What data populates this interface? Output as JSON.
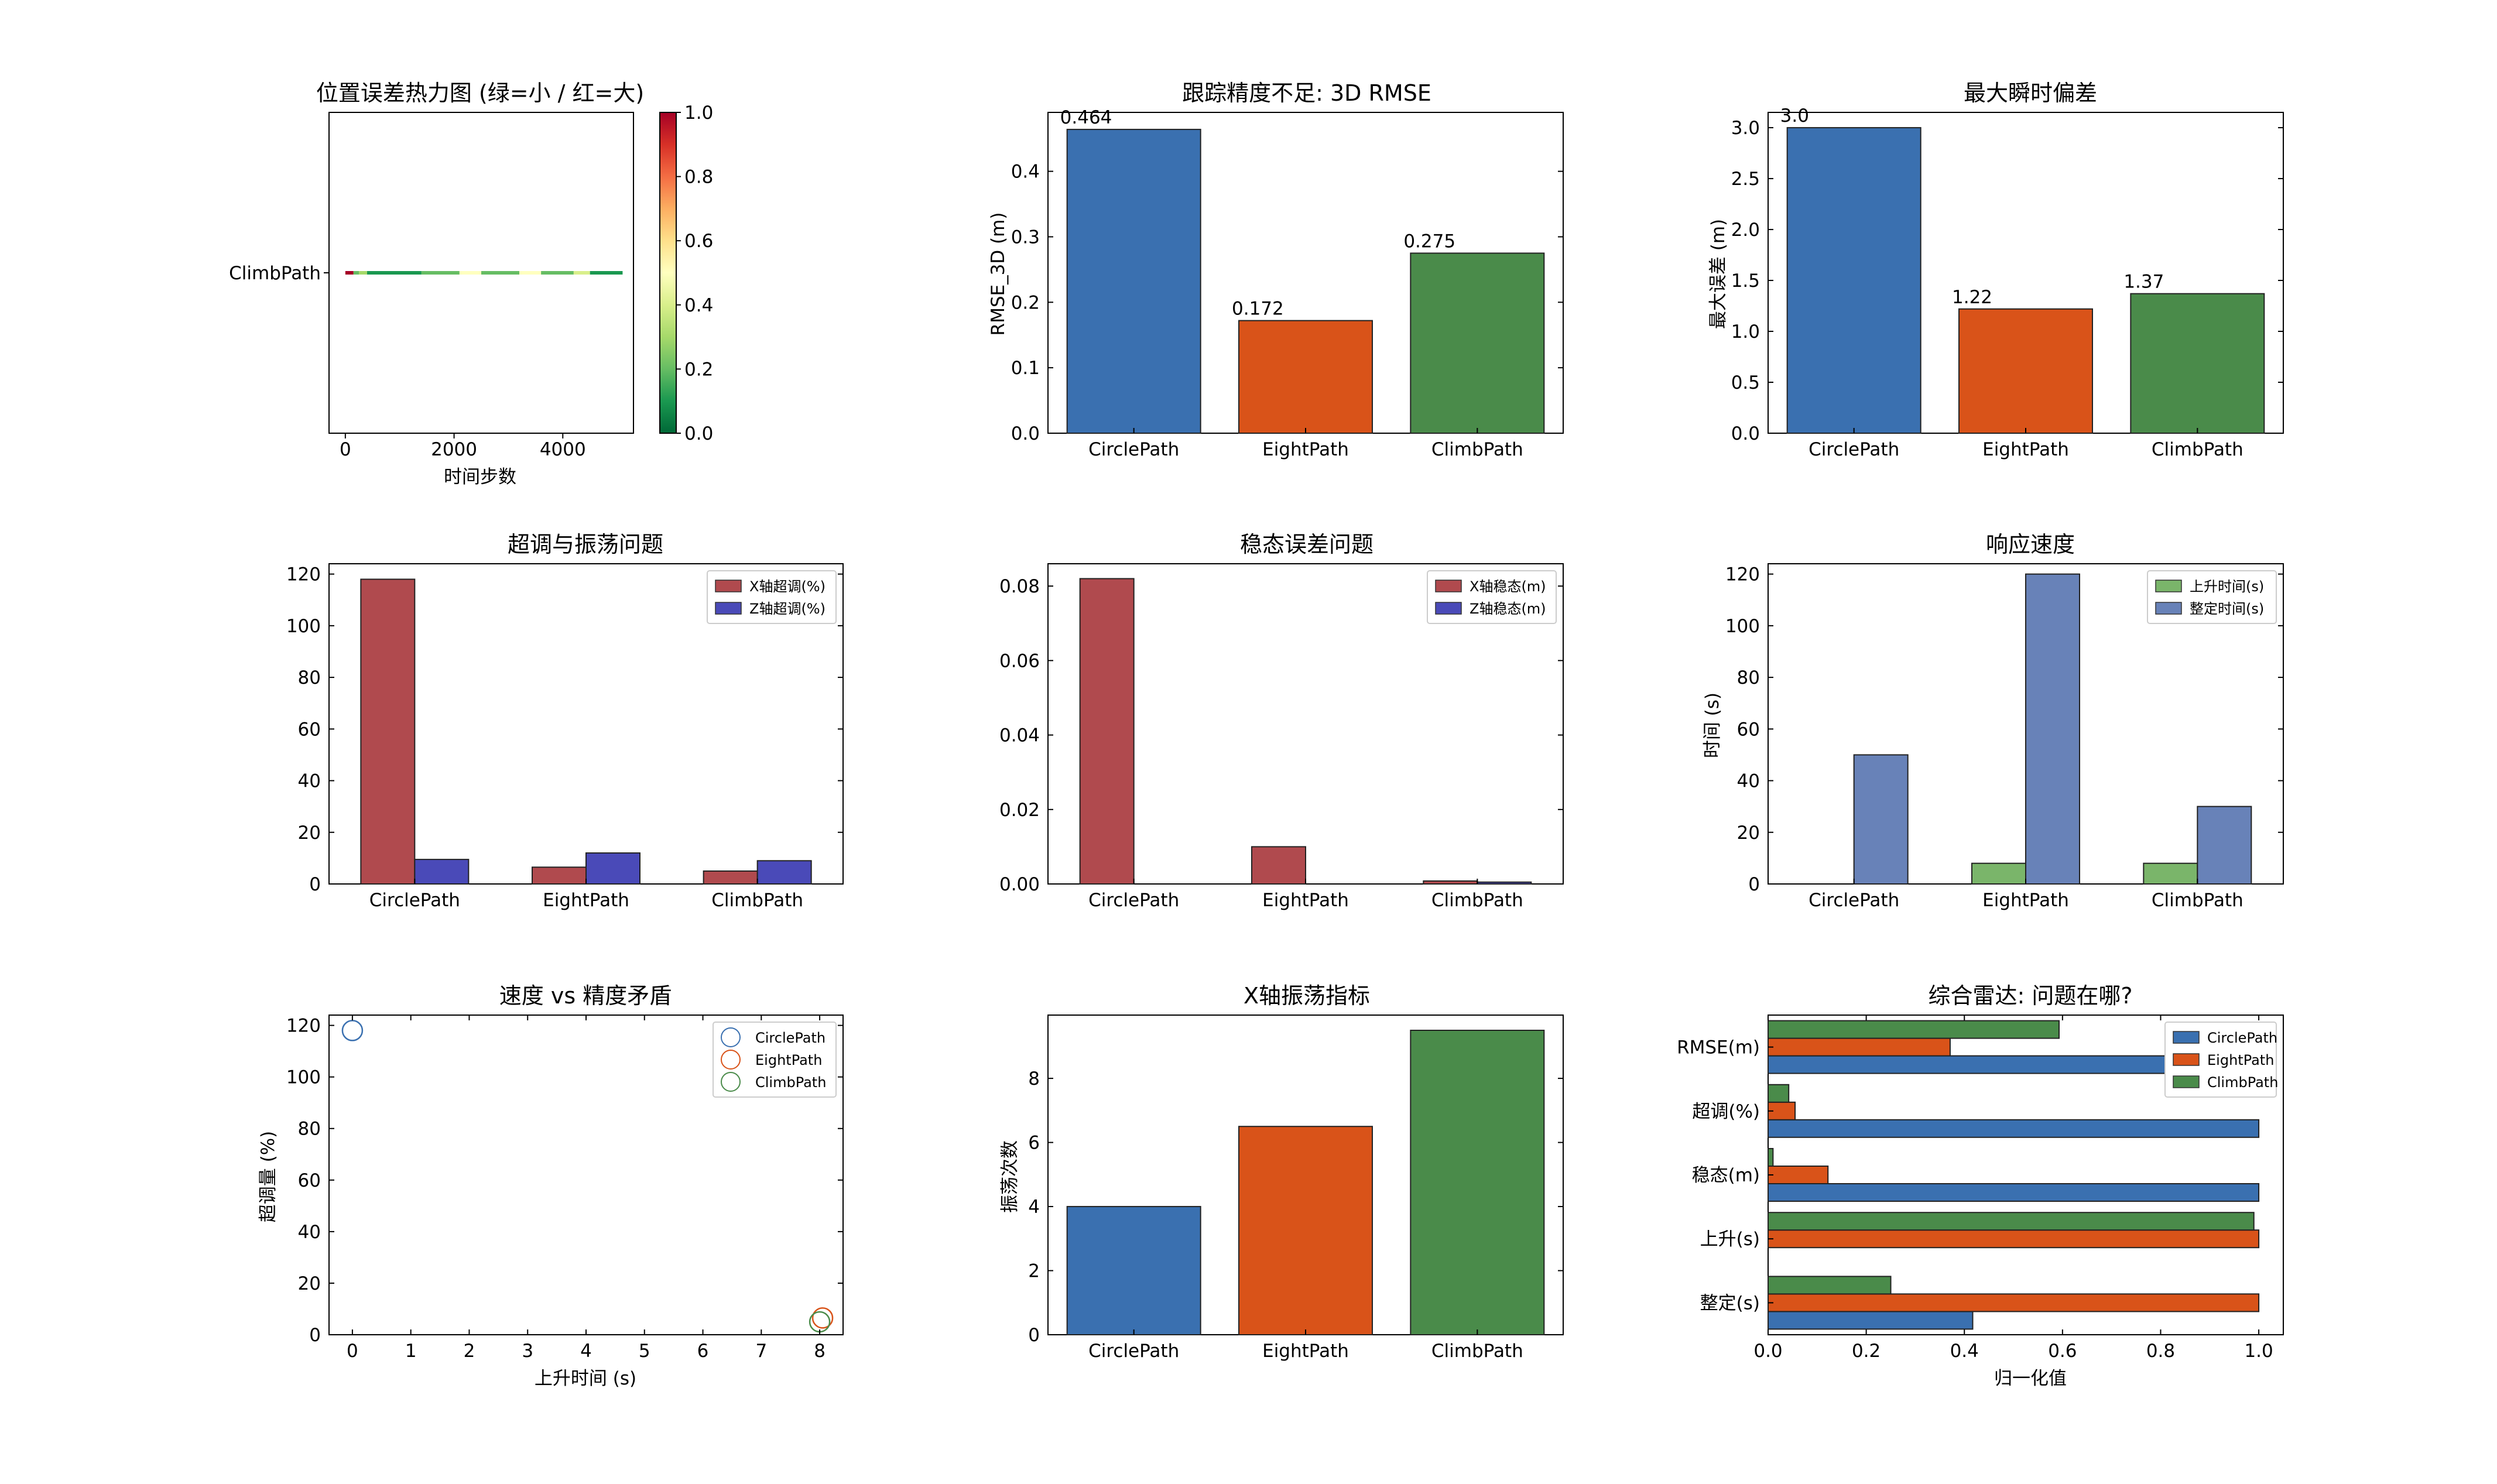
{
  "colors": {
    "blue": "#3a70b0",
    "orange": "#d95319",
    "green": "#4a8b4a",
    "red_bar": "#b04a4e",
    "indigo_bar": "#4a4ab8",
    "light_green_bar": "#7ab56a",
    "slate_blue_bar": "#6882b8"
  },
  "chart_data": [
    {
      "id": "heatmap",
      "type": "heatmap",
      "title": "位置误差热力图 (绿=小 / 红=大)",
      "xlabel": "时间步数",
      "ylabel": "",
      "row_labels": [
        "ClimbPath"
      ],
      "xticks": [
        "0",
        "2000",
        "4000"
      ],
      "xlim": [
        -300,
        5300
      ],
      "colorbar_ticks": [
        "0.0",
        "0.2",
        "0.4",
        "0.6",
        "0.8",
        "1.0"
      ],
      "colorbar_range": [
        0,
        1
      ],
      "row_profile": [
        {
          "x": 0,
          "v": 0.95
        },
        {
          "x": 150,
          "v": 0.15
        },
        {
          "x": 250,
          "v": 0.3
        },
        {
          "x": 400,
          "v": 0.1
        },
        {
          "x": 1400,
          "v": 0.2
        },
        {
          "x": 2100,
          "v": 0.5
        },
        {
          "x": 2500,
          "v": 0.15
        },
        {
          "x": 3200,
          "v": 0.45
        },
        {
          "x": 3600,
          "v": 0.2
        },
        {
          "x": 4200,
          "v": 0.4
        },
        {
          "x": 4500,
          "v": 0.1
        },
        {
          "x": 5100,
          "v": 0.3
        }
      ]
    },
    {
      "id": "rmse",
      "type": "bar",
      "title": "跟踪精度不足: 3D RMSE",
      "xlabel": "",
      "ylabel": "RMSE_3D (m)",
      "categories": [
        "CirclePath",
        "EightPath",
        "ClimbPath"
      ],
      "values": [
        0.464,
        0.172,
        0.275
      ],
      "data_labels": [
        "0.464",
        "0.172",
        "0.275"
      ],
      "ylim": [
        0,
        0.49
      ],
      "yticks": [
        "0.0",
        "0.1",
        "0.2",
        "0.3",
        "0.4"
      ]
    },
    {
      "id": "maxerr",
      "type": "bar",
      "title": "最大瞬时偏差",
      "xlabel": "",
      "ylabel": "最大误差 (m)",
      "categories": [
        "CirclePath",
        "EightPath",
        "ClimbPath"
      ],
      "values": [
        3.0,
        1.22,
        1.37
      ],
      "data_labels": [
        "3.0",
        "1.22",
        "1.37"
      ],
      "ylim": [
        0,
        3.15
      ],
      "yticks": [
        "0.0",
        "0.5",
        "1.0",
        "1.5",
        "2.0",
        "2.5",
        "3.0"
      ]
    },
    {
      "id": "overshoot",
      "type": "bar",
      "title": "超调与振荡问题",
      "xlabel": "",
      "ylabel": "",
      "categories": [
        "CirclePath",
        "EightPath",
        "ClimbPath"
      ],
      "series": [
        {
          "name": "X轴超调(%)",
          "values": [
            118,
            6.5,
            5
          ]
        },
        {
          "name": "Z轴超调(%)",
          "values": [
            9.5,
            12,
            9
          ]
        }
      ],
      "ylim": [
        0,
        124
      ],
      "yticks": [
        "0",
        "20",
        "40",
        "60",
        "80",
        "100",
        "120"
      ],
      "legend": "top-right"
    },
    {
      "id": "steady",
      "type": "bar",
      "title": "稳态误差问题",
      "xlabel": "",
      "ylabel": "",
      "categories": [
        "CirclePath",
        "EightPath",
        "ClimbPath"
      ],
      "series": [
        {
          "name": "X轴稳态(m)",
          "values": [
            0.082,
            0.01,
            0.0008
          ]
        },
        {
          "name": "Z轴稳态(m)",
          "values": [
            0,
            0,
            0.0005
          ]
        }
      ],
      "ylim": [
        0,
        0.086
      ],
      "yticks": [
        "0.00",
        "0.02",
        "0.04",
        "0.06",
        "0.08"
      ],
      "legend": "top-right"
    },
    {
      "id": "response",
      "type": "bar",
      "title": "响应速度",
      "xlabel": "",
      "ylabel": "时间 (s)",
      "categories": [
        "CirclePath",
        "EightPath",
        "ClimbPath"
      ],
      "series": [
        {
          "name": "上升时间(s)",
          "values": [
            0,
            8,
            8
          ]
        },
        {
          "name": "整定时间(s)",
          "values": [
            50,
            120,
            30
          ]
        }
      ],
      "ylim": [
        0,
        124
      ],
      "yticks": [
        "0",
        "20",
        "40",
        "60",
        "80",
        "100",
        "120"
      ],
      "legend": "top-right"
    },
    {
      "id": "tradeoff",
      "type": "scatter",
      "title": "速度 vs 精度矛盾",
      "xlabel": "上升时间 (s)",
      "ylabel": "超调量 (%)",
      "series": [
        {
          "name": "CirclePath",
          "points": [
            [
              0,
              118
            ]
          ]
        },
        {
          "name": "EightPath",
          "points": [
            [
              8.05,
              6.5
            ]
          ]
        },
        {
          "name": "ClimbPath",
          "points": [
            [
              8.0,
              5
            ]
          ]
        }
      ],
      "xlim": [
        -0.4,
        8.4
      ],
      "ylim": [
        0,
        124
      ],
      "xticks": [
        "0",
        "1",
        "2",
        "3",
        "4",
        "5",
        "6",
        "7",
        "8"
      ],
      "yticks": [
        "0",
        "20",
        "40",
        "60",
        "80",
        "100",
        "120"
      ],
      "legend": "top-right"
    },
    {
      "id": "oscillation",
      "type": "bar",
      "title": "X轴振荡指标",
      "xlabel": "",
      "ylabel": "振荡次数",
      "categories": [
        "CirclePath",
        "EightPath",
        "ClimbPath"
      ],
      "values": [
        4,
        6.5,
        9.5
      ],
      "ylim": [
        0,
        9.975
      ],
      "yticks": [
        "0",
        "2",
        "4",
        "6",
        "8"
      ]
    },
    {
      "id": "radar",
      "type": "bar",
      "orientation": "horizontal",
      "title": "综合雷达: 问题在哪?",
      "xlabel": "归一化值",
      "ylabel": "",
      "categories": [
        "RMSE(m)",
        "超调(%)",
        "稳态(m)",
        "上升(s)",
        "整定(s)"
      ],
      "series": [
        {
          "name": "CirclePath",
          "values": [
            1.0,
            1.0,
            1.0,
            0,
            0.417
          ]
        },
        {
          "name": "EightPath",
          "values": [
            0.371,
            0.055,
            0.122,
            1.0,
            1.0
          ]
        },
        {
          "name": "ClimbPath",
          "values": [
            0.593,
            0.042,
            0.01,
            0.99,
            0.25
          ]
        }
      ],
      "xlim": [
        0,
        1.05
      ],
      "xticks": [
        "0.0",
        "0.2",
        "0.4",
        "0.6",
        "0.8",
        "1.0"
      ],
      "legend": "top-right"
    }
  ]
}
